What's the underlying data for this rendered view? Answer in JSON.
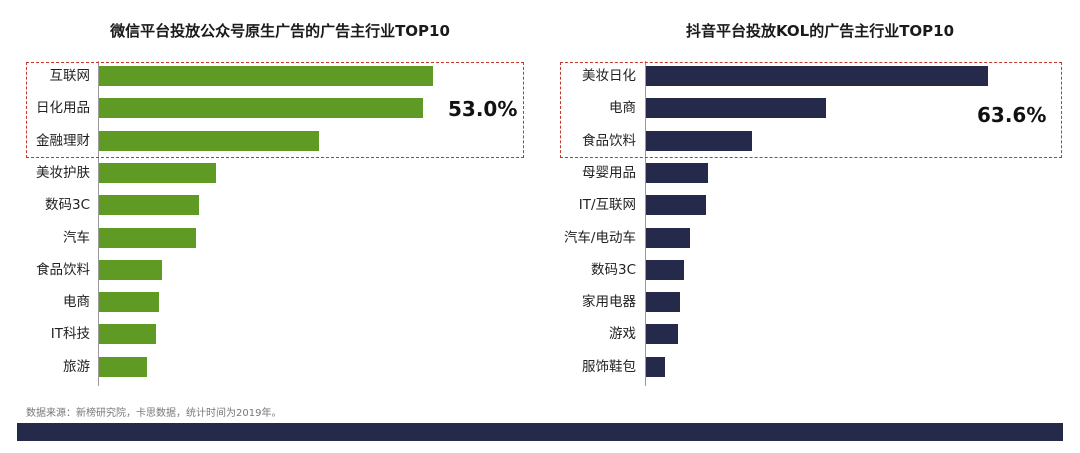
{
  "chart_data": [
    {
      "type": "bar",
      "orientation": "horizontal",
      "title": "微信平台投放公众号原生广告的广告主行业TOP10",
      "categories": [
        "互联网",
        "日化用品",
        "金融理财",
        "美妆护肤",
        "数码3C",
        "汽车",
        "食品饮料",
        "电商",
        "IT科技",
        "旅游"
      ],
      "values": [
        100,
        97,
        66,
        35,
        30,
        29,
        19,
        18,
        17,
        14.5
      ],
      "xlim": [
        0,
        100
      ],
      "bar_color": "#5e9a24",
      "highlight": {
        "count": 3,
        "label": "53.0%"
      }
    },
    {
      "type": "bar",
      "orientation": "horizontal",
      "title": "抖音平台投放KOL的广告主行业TOP10",
      "categories": [
        "美妆日化",
        "电商",
        "食品饮料",
        "母婴用品",
        "IT/互联网",
        "汽车/电动车",
        "数码3C",
        "家用电器",
        "游戏",
        "服饰鞋包"
      ],
      "values": [
        100,
        52.5,
        31,
        18,
        17.5,
        13,
        11,
        10,
        9.5,
        5.5
      ],
      "xlim": [
        0,
        100
      ],
      "bar_color": "#25294a",
      "highlight": {
        "count": 3,
        "label": "63.6%"
      }
    }
  ],
  "source_note": "数据来源：新榜研究院，卡思数据，统计时间为2019年。",
  "colors": {
    "highlight_border": "#c0392b",
    "footer_bar": "#25294a"
  }
}
